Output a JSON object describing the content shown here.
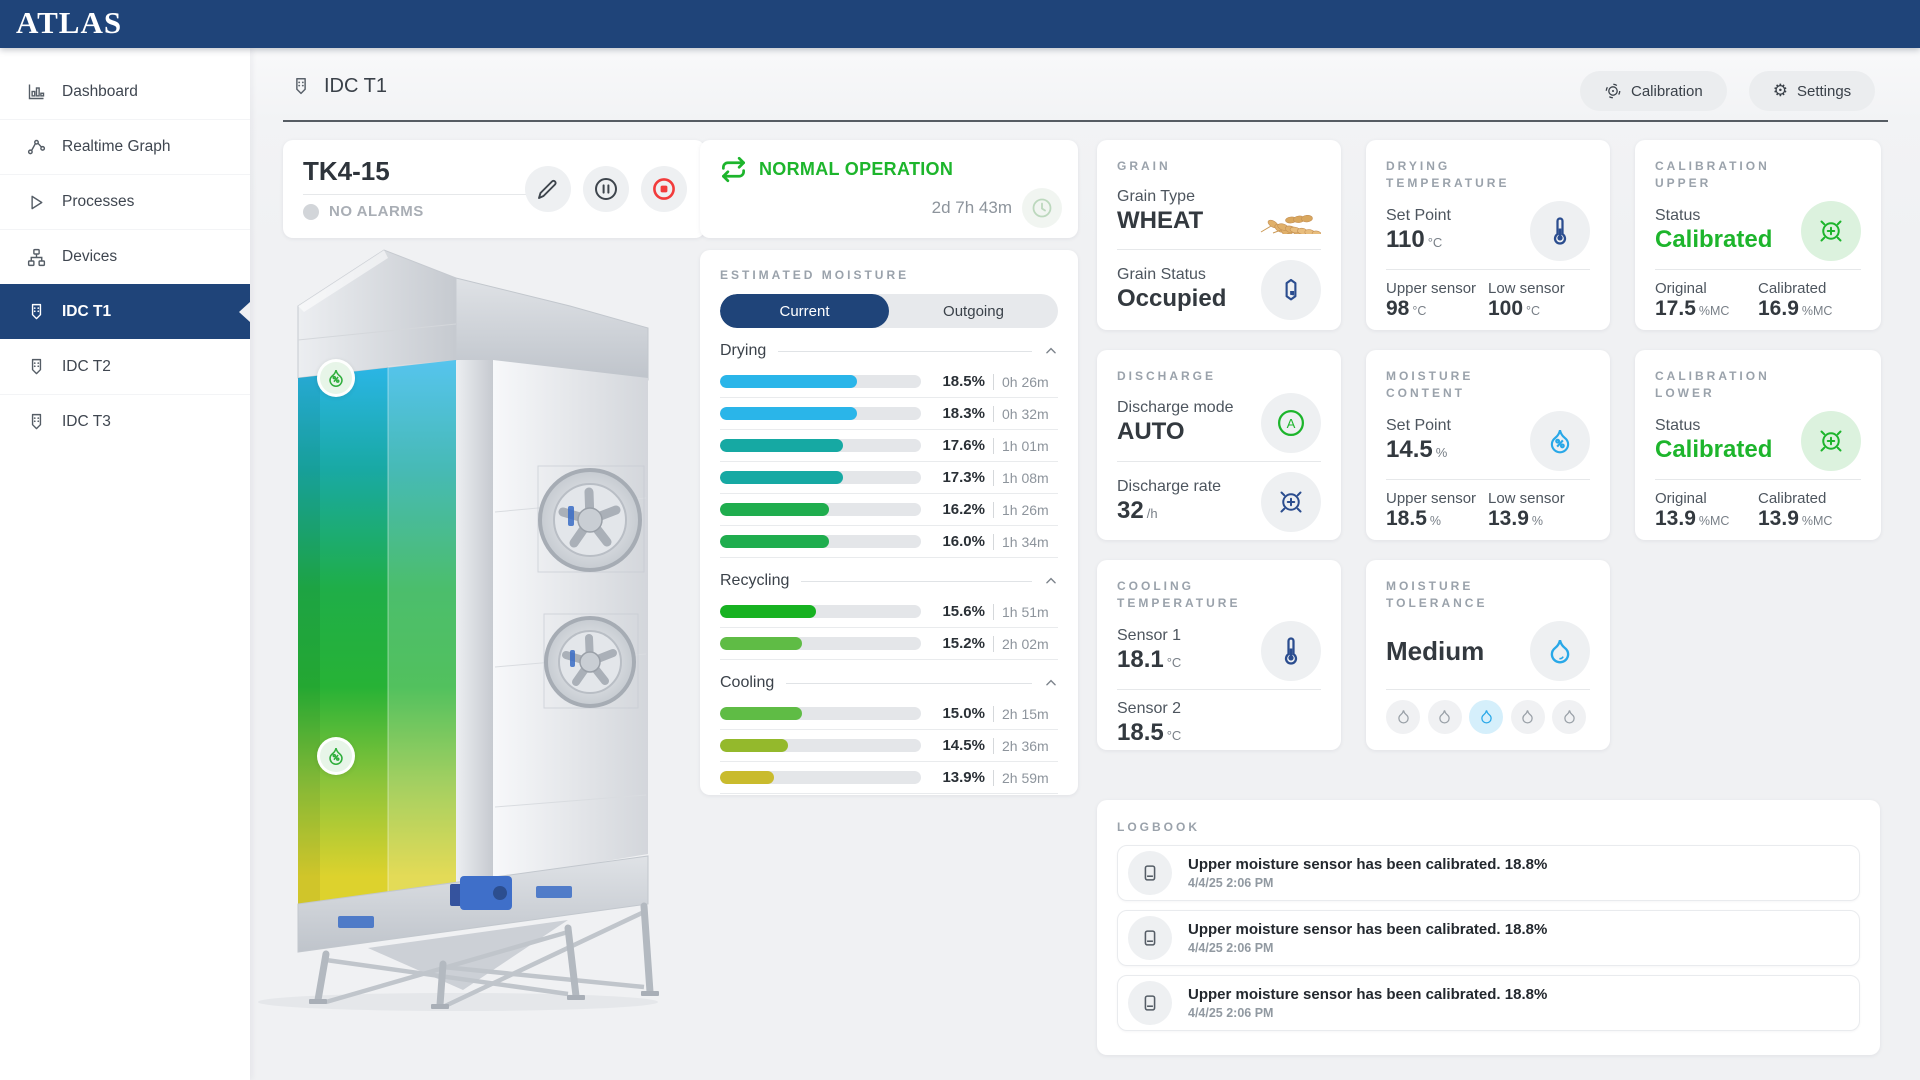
{
  "app": {
    "logo": "ATLAS"
  },
  "sidebar": {
    "items": [
      {
        "label": "Dashboard"
      },
      {
        "label": "Realtime Graph"
      },
      {
        "label": "Processes"
      },
      {
        "label": "Devices"
      },
      {
        "label": "IDC T1",
        "active": true
      },
      {
        "label": "IDC T2"
      },
      {
        "label": "IDC T3"
      }
    ]
  },
  "header": {
    "title": "IDC T1",
    "calibration_button": "Calibration",
    "settings_button": "Settings"
  },
  "unit": {
    "name": "TK4-15",
    "alarm_status": "NO ALARMS"
  },
  "status": {
    "state": "NORMAL OPERATION",
    "runtime": "2d 7h 43m"
  },
  "moisture": {
    "title": "ESTIMATED MOISTURE",
    "tabs": [
      {
        "label": "Current",
        "active": true
      },
      {
        "label": "Outgoing",
        "active": false
      }
    ],
    "sections": [
      {
        "name": "Drying",
        "rows": [
          {
            "value": "18.5%",
            "time": "0h 26m",
            "fill_pct": 68,
            "color": "#2ab5e9"
          },
          {
            "value": "18.3%",
            "time": "0h 32m",
            "fill_pct": 68,
            "color": "#2ab5e9"
          },
          {
            "value": "17.6%",
            "time": "1h 01m",
            "fill_pct": 61,
            "color": "#16a9a3"
          },
          {
            "value": "17.3%",
            "time": "1h 08m",
            "fill_pct": 61,
            "color": "#16a9a3"
          },
          {
            "value": "16.2%",
            "time": "1h 26m",
            "fill_pct": 54,
            "color": "#1fad4e"
          },
          {
            "value": "16.0%",
            "time": "1h 34m",
            "fill_pct": 54,
            "color": "#1fad4e"
          }
        ]
      },
      {
        "name": "Recycling",
        "rows": [
          {
            "value": "15.6%",
            "time": "1h 51m",
            "fill_pct": 48,
            "color": "#17b221"
          },
          {
            "value": "15.2%",
            "time": "2h 02m",
            "fill_pct": 41,
            "color": "#5fbc45"
          }
        ]
      },
      {
        "name": "Cooling",
        "rows": [
          {
            "value": "15.0%",
            "time": "2h 15m",
            "fill_pct": 41,
            "color": "#5fbc45"
          },
          {
            "value": "14.5%",
            "time": "2h 36m",
            "fill_pct": 34,
            "color": "#94b92c"
          },
          {
            "value": "13.9%",
            "time": "2h 59m",
            "fill_pct": 27,
            "color": "#c9bb2d"
          }
        ]
      }
    ]
  },
  "cards": {
    "grain": {
      "title": "GRAIN",
      "type_label": "Grain Type",
      "type_value": "WHEAT",
      "status_label": "Grain Status",
      "status_value": "Occupied"
    },
    "discharge": {
      "title": "DISCHARGE",
      "mode_label": "Discharge mode",
      "mode_value": "AUTO",
      "rate_label": "Discharge rate",
      "rate_value": "32",
      "rate_unit": "/h",
      "auto_letter": "A"
    },
    "cooling": {
      "title": "COOLING TEMPERATURE",
      "s1_label": "Sensor 1",
      "s1_value": "18.1",
      "s1_unit": "°C",
      "s2_label": "Sensor 2",
      "s2_value": "18.5",
      "s2_unit": "°C"
    },
    "drying": {
      "title": "DRYING TEMPERATURE",
      "sp_label": "Set Point",
      "sp_value": "110",
      "sp_unit": "°C",
      "upper_label": "Upper sensor",
      "upper_value": "98",
      "upper_unit": "°C",
      "low_label": "Low sensor",
      "low_value": "100",
      "low_unit": "°C"
    },
    "moisture_content": {
      "title": "MOISTURE CONTENT",
      "sp_label": "Set Point",
      "sp_value": "14.5",
      "sp_unit": "%",
      "upper_label": "Upper sensor",
      "upper_value": "18.5",
      "upper_unit": "%",
      "low_label": "Low sensor",
      "low_value": "13.9",
      "low_unit": "%"
    },
    "tolerance": {
      "title": "MOISTURE TOLERANCE",
      "value": "Medium",
      "levels": 5,
      "selected_level": 3
    },
    "cal_upper": {
      "title": "CALIBRATION UPPER",
      "status_label": "Status",
      "status_value": "Calibrated",
      "orig_label": "Original",
      "orig_value": "17.5",
      "orig_unit": "%MC",
      "cal_label": "Calibrated",
      "cal_value": "16.9",
      "cal_unit": "%MC"
    },
    "cal_lower": {
      "title": "CALIBRATION LOWER",
      "status_label": "Status",
      "status_value": "Calibrated",
      "orig_label": "Original",
      "orig_value": "13.9",
      "orig_unit": "%MC",
      "cal_label": "Calibrated",
      "cal_value": "13.9",
      "cal_unit": "%MC"
    }
  },
  "logbook": {
    "title": "LOGBOOK",
    "entries": [
      {
        "message": "Upper moisture sensor has been calibrated. 18.8%",
        "timestamp": "4/4/25 2:06 PM"
      },
      {
        "message": "Upper moisture sensor has been calibrated. 18.8%",
        "timestamp": "4/4/25 2:06 PM"
      },
      {
        "message": "Upper moisture sensor has been calibrated. 18.8%",
        "timestamp": "4/4/25 2:06 PM"
      }
    ]
  },
  "colors": {
    "navy": "#1f4479",
    "green": "#1db52c",
    "red": "#f23b3b",
    "blue": "#29a8e8"
  }
}
